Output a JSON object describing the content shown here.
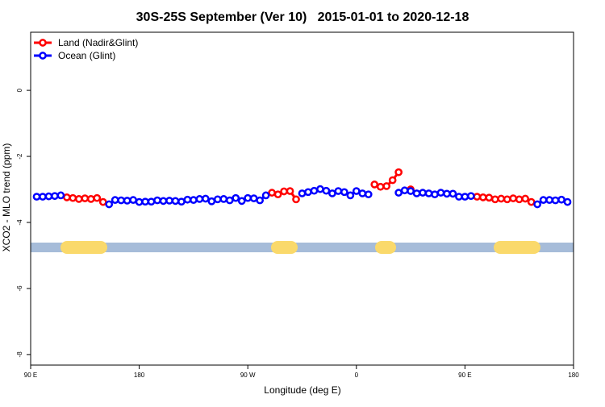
{
  "chart_data": {
    "type": "line",
    "title": "30S-25S September (Ver 10)   2015-01-01 to 2020-12-18",
    "x_label": "Longitude (deg E)",
    "y_label": "XCO2 - MLO trend (ppm)",
    "xlim": [
      90,
      540
    ],
    "ylim": [
      -8.32,
      1.76
    ],
    "xticks": [
      {
        "value": 90,
        "label": "90 E"
      },
      {
        "value": 180,
        "label": "180"
      },
      {
        "value": 270,
        "label": "90 W"
      },
      {
        "value": 360,
        "label": "0"
      },
      {
        "value": 450,
        "label": "90 E"
      },
      {
        "value": 540,
        "label": "180"
      }
    ],
    "yticks": [
      0,
      -2,
      -4,
      -6,
      -8
    ],
    "legend_position": "top-left",
    "x": [
      95,
      100,
      105,
      110,
      115,
      120,
      125,
      130,
      135,
      140,
      145,
      150,
      155,
      160,
      165,
      170,
      175,
      180,
      185,
      190,
      195,
      200,
      205,
      210,
      215,
      220,
      225,
      230,
      235,
      240,
      245,
      250,
      255,
      260,
      265,
      270,
      275,
      280,
      285,
      290,
      295,
      300,
      305,
      310,
      315,
      320,
      325,
      330,
      335,
      340,
      345,
      350,
      355,
      360,
      365,
      370,
      375,
      380,
      385,
      390,
      395,
      400,
      405,
      410,
      415,
      420,
      425,
      430,
      435,
      440,
      445,
      450,
      455,
      460,
      465,
      470,
      475,
      480,
      485,
      490,
      495,
      500,
      505,
      510,
      515,
      520,
      525,
      530,
      535
    ],
    "series": [
      {
        "name": "Land (Nadir&Glint)",
        "color": "#ff0000",
        "values": [
          null,
          null,
          null,
          null,
          null,
          -3.24,
          -3.26,
          -3.29,
          -3.27,
          -3.29,
          -3.26,
          -3.38,
          null,
          null,
          null,
          null,
          null,
          null,
          null,
          null,
          null,
          null,
          null,
          null,
          null,
          null,
          null,
          null,
          null,
          null,
          null,
          null,
          null,
          null,
          null,
          null,
          null,
          null,
          null,
          -3.1,
          -3.15,
          -3.06,
          -3.05,
          -3.3,
          null,
          null,
          null,
          null,
          null,
          null,
          null,
          null,
          null,
          null,
          null,
          null,
          -2.85,
          -2.92,
          -2.9,
          -2.72,
          -2.48,
          null,
          -3.0,
          null,
          null,
          null,
          null,
          null,
          null,
          null,
          null,
          null,
          null,
          -3.22,
          -3.24,
          -3.25,
          -3.3,
          -3.28,
          -3.3,
          -3.27,
          -3.3,
          -3.28,
          -3.38,
          null,
          null,
          null,
          null,
          null,
          null
        ]
      },
      {
        "name": "Ocean (Glint)",
        "color": "#0000ff",
        "values": [
          -3.22,
          -3.22,
          -3.21,
          -3.2,
          -3.18,
          null,
          null,
          null,
          null,
          null,
          null,
          null,
          -3.45,
          -3.32,
          -3.33,
          -3.34,
          -3.32,
          -3.38,
          -3.37,
          -3.37,
          -3.33,
          -3.35,
          -3.34,
          -3.35,
          -3.37,
          -3.31,
          -3.32,
          -3.29,
          -3.28,
          -3.36,
          -3.3,
          -3.29,
          -3.33,
          -3.26,
          -3.35,
          -3.26,
          -3.27,
          -3.33,
          -3.18,
          null,
          null,
          null,
          null,
          null,
          -3.12,
          -3.08,
          -3.04,
          -2.99,
          -3.04,
          -3.12,
          -3.05,
          -3.08,
          -3.18,
          -3.05,
          -3.12,
          -3.15,
          null,
          null,
          null,
          null,
          -3.1,
          -3.03,
          -3.05,
          -3.12,
          -3.1,
          -3.12,
          -3.15,
          -3.1,
          -3.13,
          -3.13,
          -3.22,
          -3.22,
          -3.2,
          null,
          null,
          null,
          null,
          null,
          null,
          null,
          null,
          null,
          null,
          -3.45,
          -3.32,
          -3.32,
          -3.33,
          -3.31,
          -3.38
        ]
      }
    ]
  }
}
